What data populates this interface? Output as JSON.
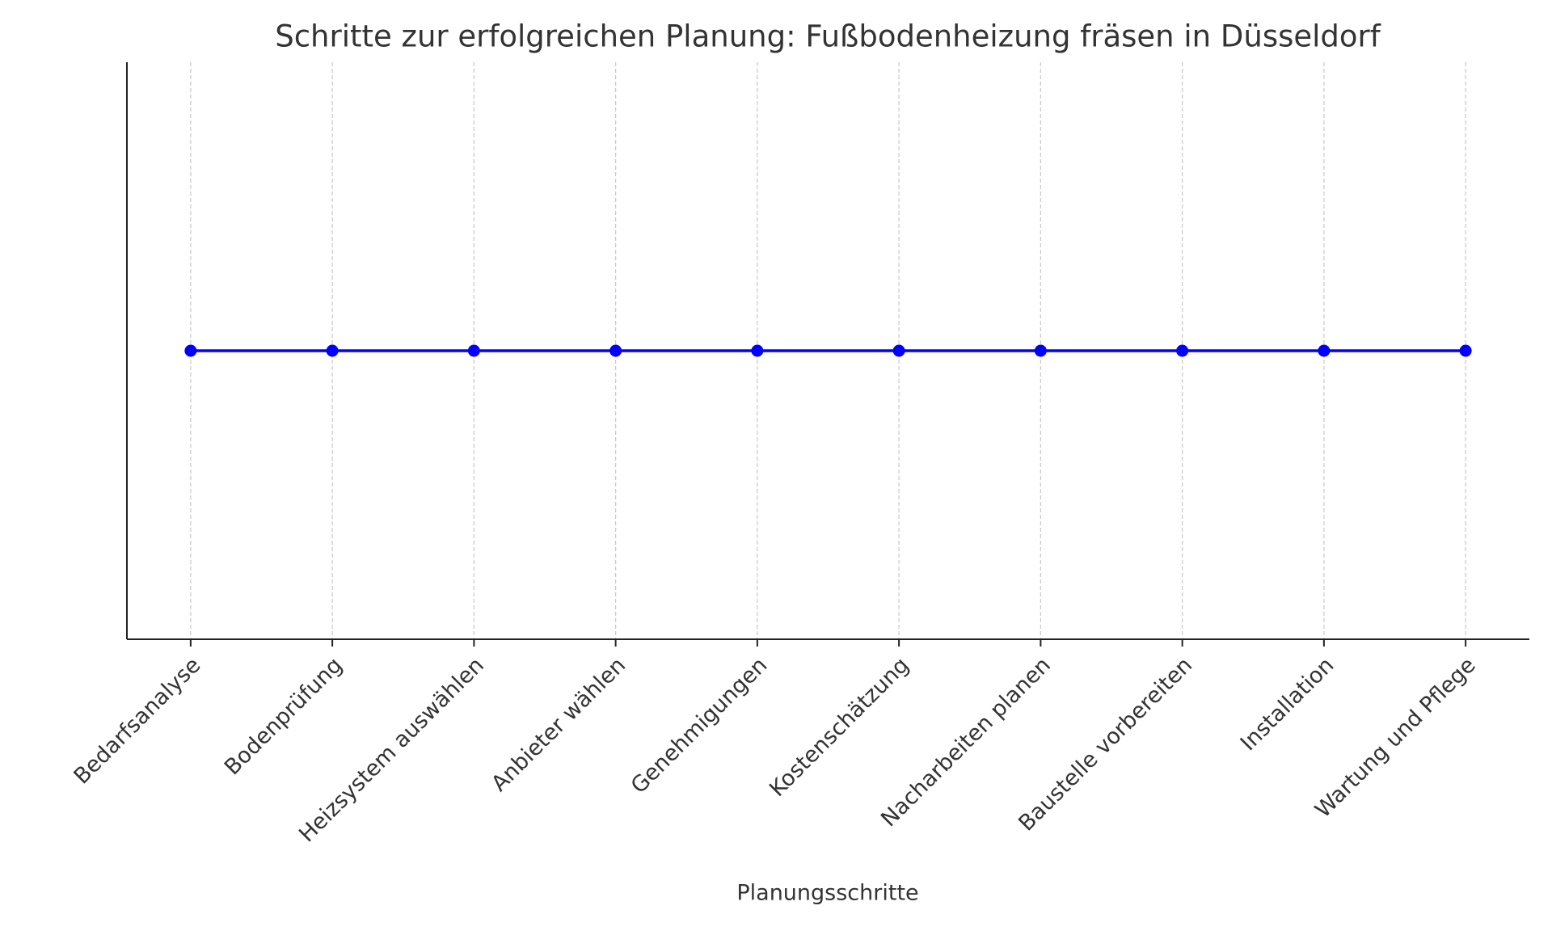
{
  "chart_data": {
    "type": "line",
    "title": "Schritte zur erfolgreichen Planung: Fußbodenheizung fräsen in Düsseldorf",
    "x_label": "Planungsschritte",
    "categories": [
      "Bedarfsanalyse",
      "Bodenprüfung",
      "Heizsystem auswählen",
      "Anbieter wählen",
      "Genehmigungen",
      "Kostenschätzung",
      "Nacharbeiten planen",
      "Baustelle vorbereiten",
      "Installation",
      "Wartung und Pflege"
    ],
    "values": [
      1,
      1,
      1,
      1,
      1,
      1,
      1,
      1,
      1,
      1
    ],
    "color": "#0000ff",
    "ylim": [
      0.95,
      1.05
    ],
    "grid": true
  }
}
